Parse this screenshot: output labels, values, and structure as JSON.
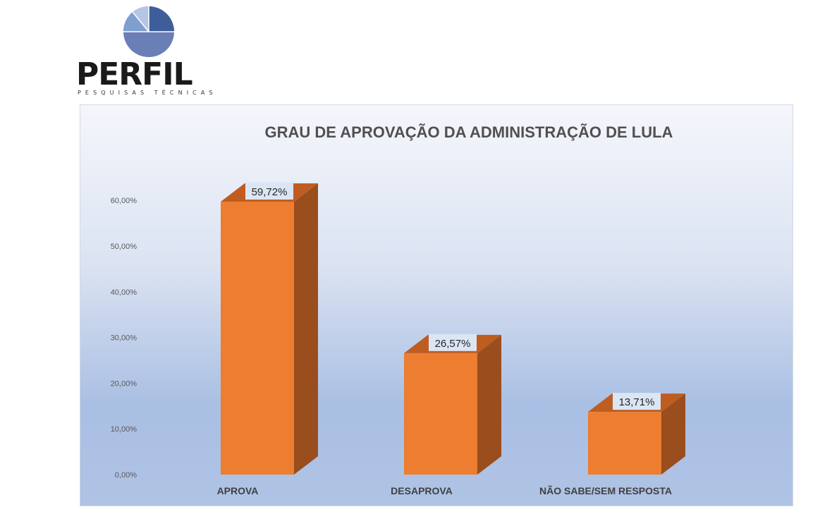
{
  "logo": {
    "name": "PERFIL",
    "tagline": "PESQUISAS TÉCNICAS",
    "colors": [
      "#3f5d99",
      "#6a8bc5",
      "#b4c6e4"
    ]
  },
  "colors": {
    "bar_front": "#ed7d31",
    "bar_side": "#9a4d1d",
    "bar_top": "#bf5d20",
    "label_box": "#dbe6f4"
  },
  "chart_data": {
    "type": "bar",
    "title": "GRAU DE APROVAÇÃO DA ADMINISTRAÇÃO DE LULA",
    "categories": [
      "APROVA",
      "DESAPROVA",
      "NÃO SABE/SEM RESPOSTA"
    ],
    "values": [
      59.72,
      26.57,
      13.71
    ],
    "data_labels": [
      "59,72%",
      "26,57%",
      "13,71%"
    ],
    "yticks": [
      0,
      10,
      20,
      30,
      40,
      50,
      60
    ],
    "ytick_labels": [
      "0,00%",
      "10,00%",
      "20,00%",
      "30,00%",
      "40,00%",
      "50,00%",
      "60,00%"
    ],
    "ylim": [
      0,
      60
    ],
    "grid": false,
    "legend": false,
    "style": "3d-column"
  }
}
